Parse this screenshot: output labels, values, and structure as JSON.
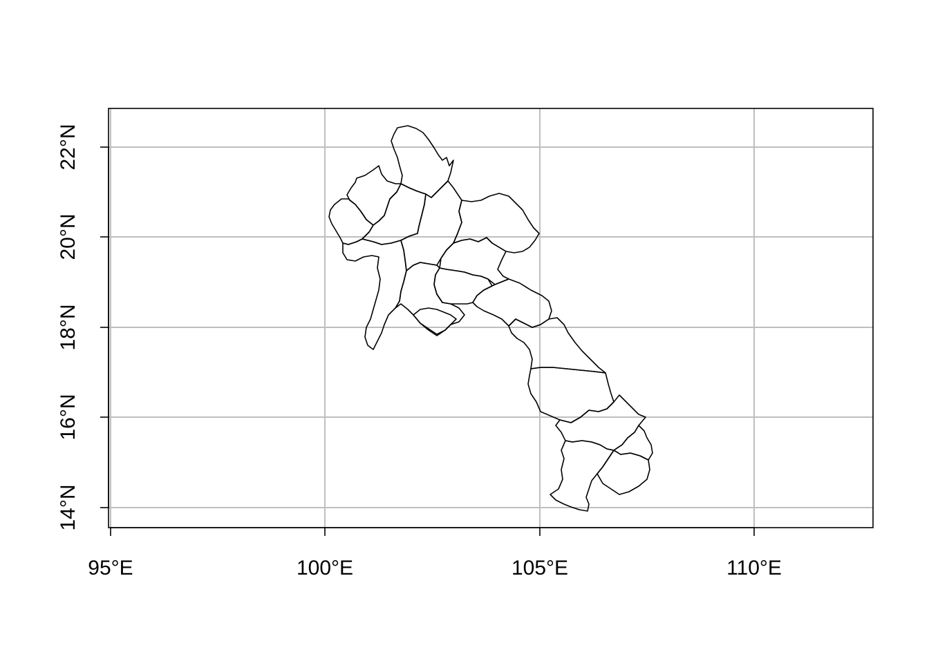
{
  "map": {
    "colors": {
      "grid": "#bebebe",
      "boundary": "#000000",
      "background": "#ffffff"
    },
    "x_axis": {
      "range": [
        95,
        112.8
      ],
      "ticks": [
        {
          "value": 95,
          "label": "95°E"
        },
        {
          "value": 100,
          "label": "100°E"
        },
        {
          "value": 105,
          "label": "105°E"
        },
        {
          "value": 110,
          "label": "110°E"
        }
      ]
    },
    "y_axis": {
      "range": [
        13.55,
        22.85
      ],
      "ticks": [
        {
          "value": 14,
          "label": "14°N"
        },
        {
          "value": 16,
          "label": "16°N"
        },
        {
          "value": 18,
          "label": "18°N"
        },
        {
          "value": 20,
          "label": "20°N"
        },
        {
          "value": 22,
          "label": "22°N"
        }
      ]
    },
    "grid": true,
    "layers": [
      "province boundaries"
    ]
  }
}
